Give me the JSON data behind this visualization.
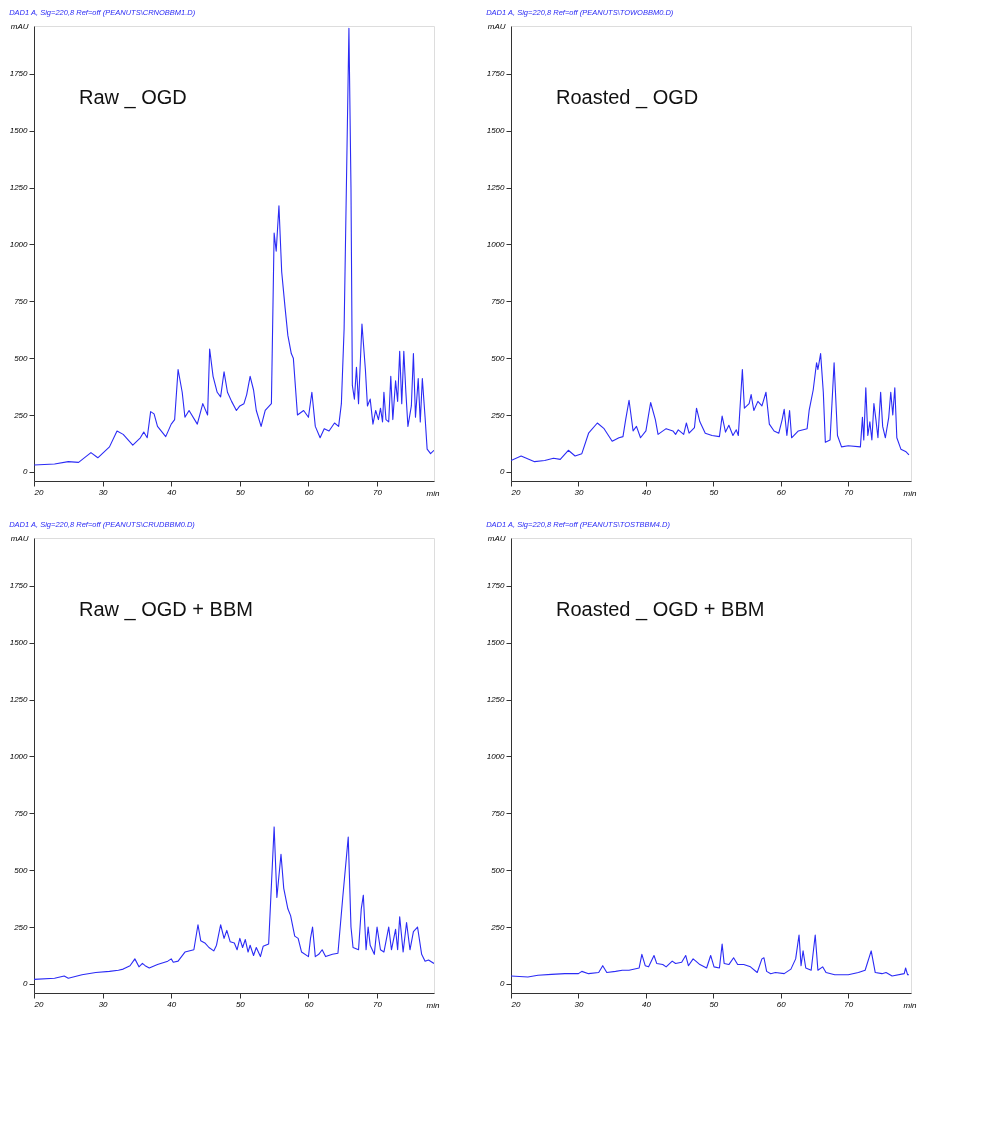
{
  "chart_data": [
    {
      "type": "line",
      "title": "Raw _ OGD",
      "subtitle": "DAD1 A, Sig=220,8 Ref=off (PEANUTS\\CRNOBBM1.D)",
      "xlabel": "min",
      "ylabel": "mAU",
      "xlim": [
        20,
        78.3
      ],
      "ylim": [
        -40,
        1960
      ],
      "xticks": [
        20,
        30,
        40,
        50,
        60,
        70
      ],
      "yticks": [
        0,
        250,
        500,
        750,
        1000,
        1250,
        1500,
        1750
      ],
      "grid": false,
      "series": [
        {
          "color": "#2b2bf5",
          "x": [
            20,
            23,
            25,
            26.5,
            28.3,
            29.3,
            31,
            32.1,
            33,
            34.4,
            35.5,
            36,
            36.5,
            37,
            37.5,
            38,
            39.2,
            40,
            40.5,
            41,
            41.6,
            42,
            42.6,
            43.8,
            44.6,
            45.3,
            45.6,
            46.1,
            46.7,
            47.2,
            47.7,
            48.2,
            48.8,
            49.5,
            50,
            50.6,
            51,
            51.5,
            52,
            52.4,
            53.1,
            53.7,
            54.6,
            55.0,
            55.3,
            55.7,
            56.1,
            56.6,
            57,
            57.5,
            57.8,
            58.4,
            59.3,
            60.0,
            60.5,
            61.0,
            61.7,
            62.3,
            63,
            63.8,
            64.4,
            64.8,
            65.2,
            65.9,
            66.2,
            66.4,
            66.7,
            67.0,
            67.3,
            67.8,
            68.3,
            68.6,
            69.0,
            69.4,
            69.8,
            70.2,
            70.5,
            70.8,
            71.0,
            71.3,
            71.7,
            72.0,
            72.3,
            72.7,
            73.0,
            73.3,
            73.6,
            73.9,
            74.2,
            74.5,
            75.0,
            75.3,
            75.6,
            76.0,
            76.3,
            76.6,
            77.0,
            77.3,
            77.8,
            78.3
          ],
          "values": [
            30,
            35,
            45,
            42,
            85,
            62,
            110,
            180,
            165,
            118,
            150,
            175,
            150,
            265,
            255,
            200,
            155,
            210,
            230,
            450,
            350,
            240,
            270,
            210,
            300,
            250,
            540,
            420,
            350,
            330,
            440,
            350,
            310,
            270,
            290,
            300,
            340,
            420,
            360,
            270,
            200,
            270,
            300,
            1050,
            970,
            1170,
            880,
            720,
            600,
            520,
            500,
            250,
            270,
            240,
            350,
            200,
            150,
            190,
            180,
            215,
            200,
            300,
            630,
            1950,
            1250,
            380,
            320,
            460,
            300,
            650,
            450,
            290,
            320,
            210,
            270,
            230,
            280,
            220,
            350,
            230,
            220,
            420,
            230,
            400,
            310,
            530,
            300,
            530,
            350,
            200,
            290,
            520,
            240,
            410,
            220,
            410,
            240,
            100,
            80,
            95
          ]
        }
      ]
    },
    {
      "type": "line",
      "title": "Roasted _ OGD",
      "subtitle": "DAD1 A, Sig=220,8 Ref=off (PEANUTS\\TOWOBBM0.D)",
      "xlabel": "min",
      "ylabel": "mAU",
      "xlim": [
        20,
        79.3
      ],
      "ylim": [
        -40,
        1960
      ],
      "xticks": [
        20,
        30,
        40,
        50,
        60,
        70
      ],
      "yticks": [
        0,
        250,
        500,
        750,
        1000,
        1250,
        1500,
        1750
      ],
      "grid": false,
      "series": [
        {
          "color": "#2b2bf5",
          "x": [
            20,
            21.5,
            23.5,
            25,
            26.3,
            27.3,
            28.5,
            29.5,
            30.5,
            31.5,
            32.8,
            33.8,
            35,
            36,
            36.6,
            37,
            37.5,
            38.1,
            38.6,
            39.2,
            40,
            40.7,
            41.4,
            41.8,
            43,
            44,
            44.4,
            44.8,
            45.6,
            46,
            46.4,
            47.2,
            47.5,
            48,
            48.8,
            49.8,
            50.9,
            51.3,
            51.8,
            52.3,
            52.9,
            53.4,
            53.7,
            54.3,
            54.6,
            55.3,
            55.6,
            56,
            56.6,
            57.2,
            57.8,
            58.3,
            59.0,
            59.7,
            60.2,
            60.5,
            60.9,
            61.3,
            61.6,
            62.6,
            63.9,
            64.2,
            64.8,
            65.3,
            65.5,
            65.9,
            66.3,
            66.6,
            67.3,
            67.9,
            68.4,
            69,
            70,
            71.8,
            72.1,
            72.3,
            72.6,
            72.9,
            73.2,
            73.5,
            73.8,
            74.1,
            74.4,
            74.8,
            75.1,
            75.5,
            76.0,
            76.3,
            76.6,
            76.9,
            77.2,
            77.8,
            78.5,
            79
          ],
          "values": [
            50,
            70,
            45,
            50,
            60,
            55,
            95,
            70,
            80,
            170,
            215,
            190,
            135,
            150,
            155,
            230,
            315,
            180,
            200,
            150,
            180,
            305,
            230,
            165,
            190,
            180,
            165,
            185,
            165,
            215,
            170,
            195,
            280,
            220,
            170,
            160,
            155,
            245,
            175,
            205,
            160,
            185,
            160,
            450,
            280,
            300,
            340,
            270,
            310,
            290,
            350,
            210,
            180,
            170,
            230,
            275,
            160,
            270,
            150,
            180,
            190,
            270,
            360,
            480,
            450,
            520,
            350,
            130,
            140,
            480,
            160,
            110,
            115,
            110,
            240,
            140,
            370,
            160,
            220,
            140,
            300,
            230,
            150,
            350,
            200,
            150,
            240,
            350,
            250,
            370,
            150,
            100,
            90,
            75
          ]
        }
      ]
    },
    {
      "type": "line",
      "title": "Raw _ OGD + BBM",
      "subtitle": "DAD1 A, Sig=220,8 Ref=off (PEANUTS\\CRUDBBM0.D)",
      "xlabel": "min",
      "ylabel": "mAU",
      "xlim": [
        20,
        78.3
      ],
      "ylim": [
        -40,
        1960
      ],
      "xticks": [
        20,
        30,
        40,
        50,
        60,
        70
      ],
      "yticks": [
        0,
        250,
        500,
        750,
        1000,
        1250,
        1500,
        1750
      ],
      "grid": false,
      "series": [
        {
          "color": "#2b2bf5",
          "x": [
            20,
            23,
            24.4,
            25,
            27,
            29,
            31,
            32.3,
            33,
            34,
            34.7,
            35.3,
            35.8,
            36.2,
            36.8,
            38,
            39.5,
            40,
            40.3,
            41,
            42,
            43.3,
            43.9,
            44.3,
            44.9,
            45.5,
            46.2,
            46.6,
            47.2,
            47.7,
            48.1,
            48.6,
            49.2,
            49.6,
            50,
            50.4,
            50.8,
            51.2,
            51.5,
            52,
            52.4,
            53,
            53.4,
            54.2,
            55.0,
            55.4,
            56.0,
            56.4,
            57.0,
            57.4,
            58.0,
            58.5,
            59.0,
            60.0,
            60.3,
            60.6,
            61.0,
            61.5,
            62.0,
            62.5,
            63.5,
            64.3,
            65.0,
            65.8,
            66.2,
            66.5,
            67.3,
            67.7,
            68.0,
            68.4,
            68.7,
            69.0,
            69.6,
            70.0,
            70.5,
            71.0,
            71.7,
            72.1,
            72.7,
            73.0,
            73.3,
            73.8,
            74.3,
            74.8,
            75.3,
            75.9,
            76.5,
            77,
            77.5,
            78.3
          ],
          "values": [
            20,
            25,
            35,
            25,
            40,
            50,
            55,
            60,
            65,
            80,
            110,
            75,
            90,
            80,
            70,
            85,
            100,
            110,
            95,
            100,
            140,
            150,
            260,
            190,
            180,
            160,
            145,
            170,
            260,
            200,
            235,
            185,
            180,
            150,
            200,
            160,
            195,
            140,
            170,
            125,
            160,
            120,
            165,
            175,
            690,
            380,
            570,
            420,
            330,
            300,
            210,
            200,
            140,
            120,
            200,
            250,
            120,
            130,
            150,
            120,
            130,
            135,
            380,
            645,
            250,
            160,
            150,
            330,
            390,
            150,
            250,
            170,
            130,
            250,
            150,
            140,
            250,
            150,
            240,
            150,
            295,
            140,
            270,
            150,
            230,
            250,
            130,
            100,
            105,
            90
          ]
        }
      ]
    },
    {
      "type": "line",
      "title": "Roasted _ OGD + BBM",
      "subtitle": "DAD1 A, Sig=220,8 Ref=off (PEANUTS\\TOSTBBM4.D)",
      "xlabel": "min",
      "ylabel": "mAU",
      "xlim": [
        20,
        79.3
      ],
      "ylim": [
        -40,
        1960
      ],
      "xticks": [
        20,
        30,
        40,
        50,
        60,
        70
      ],
      "yticks": [
        0,
        250,
        500,
        750,
        1000,
        1250,
        1500,
        1750
      ],
      "grid": false,
      "series": [
        {
          "color": "#2b2bf5",
          "x": [
            20,
            22.5,
            24,
            26,
            28,
            30,
            30.5,
            31.5,
            33,
            33.6,
            34.2,
            35.5,
            36.5,
            37.5,
            39,
            39.4,
            39.9,
            40.4,
            41.2,
            41.6,
            42.5,
            43,
            43.9,
            44.4,
            45.3,
            45.9,
            46.3,
            47,
            47.4,
            48.0,
            49.0,
            49.6,
            50.1,
            50.9,
            51.3,
            51.6,
            52.3,
            53.0,
            53.6,
            54.5,
            55.5,
            56.5,
            57.2,
            57.5,
            57.9,
            58.5,
            59.2,
            60.5,
            61.5,
            62.2,
            62.7,
            63.0,
            63.3,
            63.7,
            64.5,
            65.1,
            65.5,
            66.2,
            66.7,
            68,
            70,
            71.5,
            72.5,
            73.4,
            74.0,
            75.0,
            75.6,
            76.5,
            78.3,
            78.5,
            78.8,
            79
          ],
          "values": [
            35,
            30,
            38,
            42,
            45,
            45,
            55,
            45,
            50,
            80,
            50,
            55,
            60,
            60,
            70,
            130,
            80,
            75,
            125,
            90,
            85,
            75,
            100,
            90,
            95,
            125,
            80,
            110,
            100,
            85,
            70,
            125,
            75,
            70,
            175,
            90,
            85,
            115,
            85,
            85,
            75,
            50,
            110,
            115,
            55,
            45,
            50,
            45,
            65,
            110,
            215,
            80,
            145,
            70,
            60,
            215,
            60,
            75,
            50,
            40,
            40,
            50,
            60,
            145,
            50,
            45,
            50,
            35,
            45,
            70,
            40,
            40
          ]
        }
      ]
    }
  ]
}
